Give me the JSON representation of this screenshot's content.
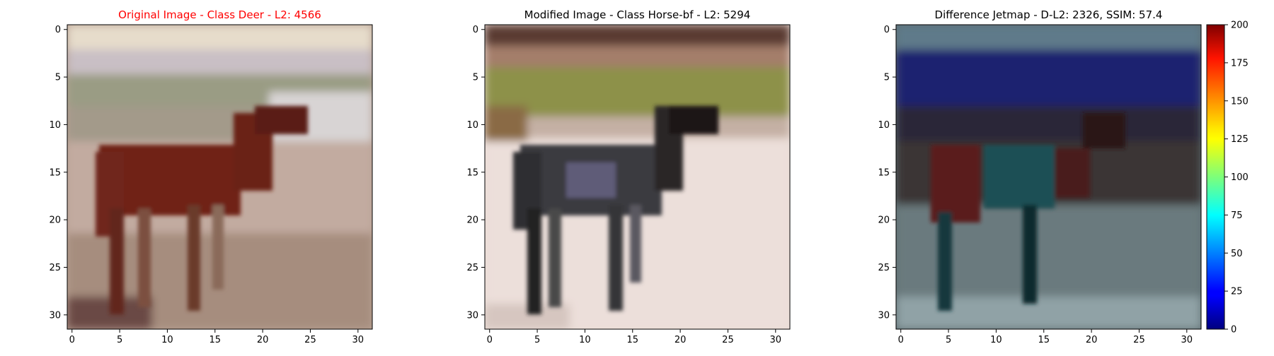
{
  "panels": [
    {
      "title": "Original Image - Class Deer - L2: 4566",
      "title_color": "#ff0000"
    },
    {
      "title": "Modified Image - Class Horse-bf - L2: 5294",
      "title_color": "#000000"
    },
    {
      "title": "Difference Jetmap - D-L2: 2326, SSIM: 57.4",
      "title_color": "#000000"
    }
  ],
  "axis_ticks": [
    "0",
    "5",
    "10",
    "15",
    "20",
    "25",
    "30"
  ],
  "colorbar": {
    "ticks": [
      "0",
      "25",
      "50",
      "75",
      "100",
      "125",
      "150",
      "175",
      "200"
    ],
    "range": [
      0,
      200
    ],
    "colormap": "jet"
  }
}
